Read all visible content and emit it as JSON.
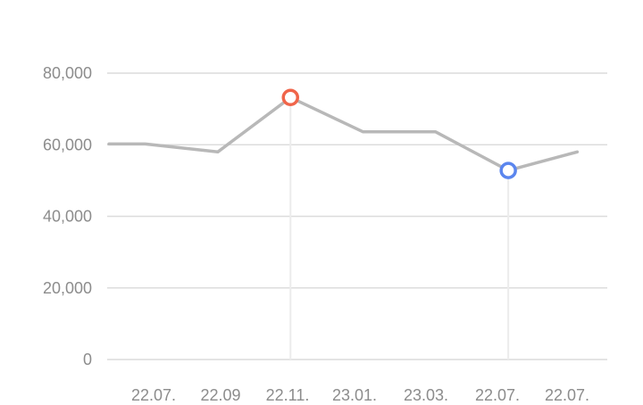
{
  "chart_data": {
    "type": "line",
    "x_labels": [
      "22.07.",
      "22.09",
      "22.11.",
      "23.01.",
      "23.03.",
      "22.07.",
      "22.07."
    ],
    "y_ticks": [
      0,
      20000,
      40000,
      60000,
      80000
    ],
    "y_tick_labels": [
      "0",
      "20,000",
      "40,000",
      "60,000",
      "80,000"
    ],
    "ylim": [
      0,
      80000
    ],
    "series": [
      {
        "values": [
          60200,
          60200,
          58000,
          73200,
          63600,
          63600,
          52800,
          58000
        ],
        "x_positions": [
          0.0,
          0.5,
          1.5,
          2.5,
          3.5,
          4.5,
          5.5,
          6.45
        ]
      }
    ],
    "highlights": [
      {
        "index": 3,
        "value": 73200,
        "color": "#f0654a",
        "kind": "max"
      },
      {
        "index": 6,
        "value": 52800,
        "color": "#5b86ee",
        "kind": "min"
      }
    ],
    "grid": true,
    "colors": {
      "line": "#b8b8b8",
      "grid": "#dcdcdc",
      "guide": "#ececec",
      "text": "#8c8c8c"
    }
  }
}
